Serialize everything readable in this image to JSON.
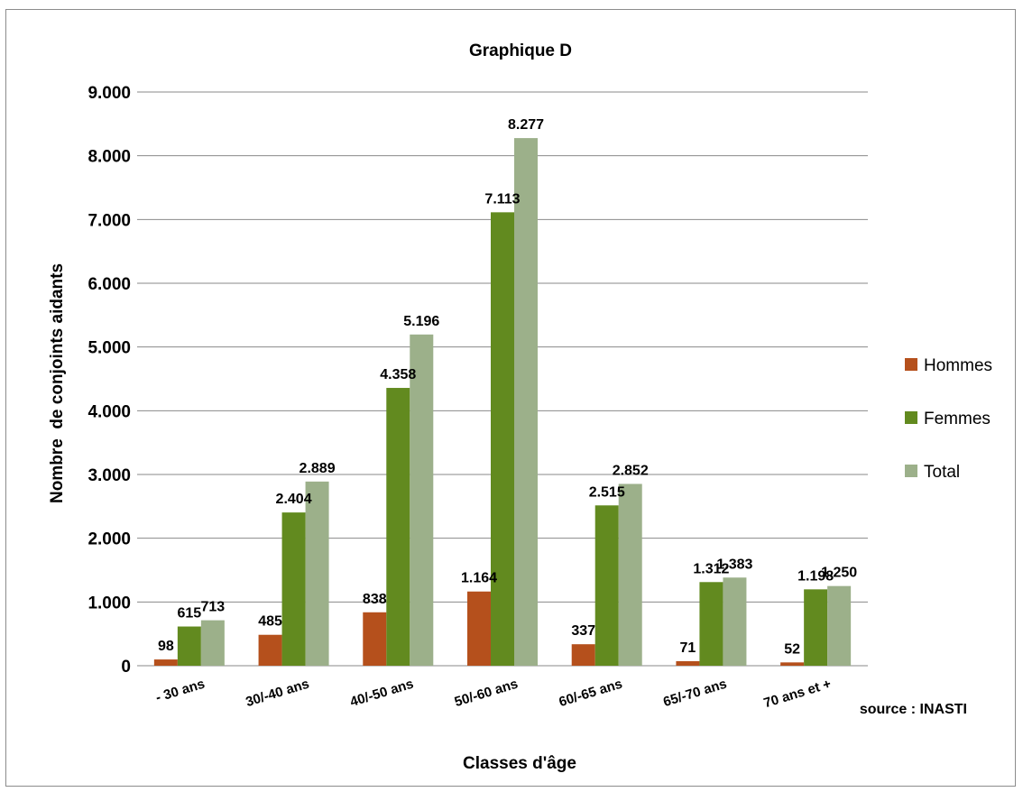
{
  "chart_data": {
    "type": "bar",
    "title": "Graphique D",
    "xlabel": "Classes d'âge",
    "ylabel": "Nombre  de conjoints aidants",
    "source": "source : INASTI",
    "categories": [
      "- 30 ans",
      "30/-40 ans",
      "40/-50 ans",
      "50/-60 ans",
      "60/-65 ans",
      "65/-70 ans",
      "70 ans et +"
    ],
    "series": [
      {
        "name": "Hommes",
        "color": "#b5501c",
        "values": [
          98,
          485,
          838,
          1164,
          337,
          71,
          52
        ],
        "labels": [
          "98",
          "485",
          "838",
          "1.164",
          "337",
          "71",
          "52"
        ]
      },
      {
        "name": "Femmes",
        "color": "#628a1f",
        "values": [
          615,
          2404,
          4358,
          7113,
          2515,
          1312,
          1198
        ],
        "labels": [
          "615",
          "2.404",
          "4.358",
          "7.113",
          "2.515",
          "1.312",
          "1.198"
        ]
      },
      {
        "name": "Total",
        "color": "#9cb08a",
        "values": [
          713,
          2889,
          5196,
          8277,
          2852,
          1383,
          1250
        ],
        "labels": [
          "713",
          "2.889",
          "5.196",
          "8.277",
          "2.852",
          "1.383",
          "1.250"
        ]
      }
    ],
    "ylim": [
      0,
      9000
    ],
    "yticks": [
      0,
      1000,
      2000,
      3000,
      4000,
      5000,
      6000,
      7000,
      8000,
      9000
    ],
    "ytick_labels": [
      "0",
      "1.000",
      "2.000",
      "3.000",
      "4.000",
      "5.000",
      "6.000",
      "7.000",
      "8.000",
      "9.000"
    ],
    "grid": true,
    "legend_position": "right"
  }
}
